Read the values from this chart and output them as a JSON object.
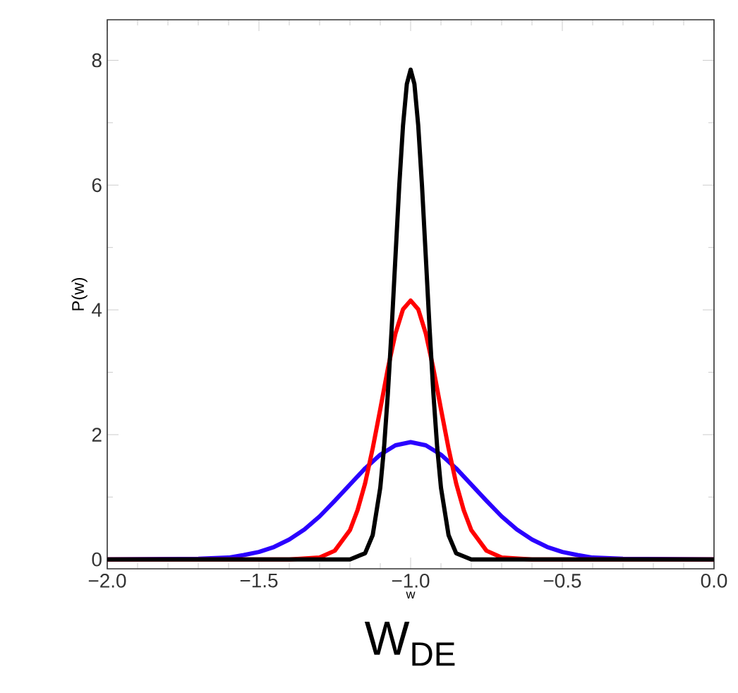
{
  "chart_data": {
    "type": "line",
    "xlabel": "w",
    "ylabel": "P(w)",
    "annotations": [
      "W$_{DE}$"
    ],
    "xlim": [
      -2.0,
      0.0
    ],
    "ylim": [
      -0.15,
      8.65
    ],
    "xticks": [
      {
        "value": -2.0,
        "label": "−2.0"
      },
      {
        "value": -1.5,
        "label": "−1.5"
      },
      {
        "value": -1.0,
        "label": "−1.0"
      },
      {
        "value": -0.5,
        "label": "−0.5"
      },
      {
        "value": 0.0,
        "label": "0.0"
      }
    ],
    "yticks": [
      0,
      2,
      4,
      6,
      8
    ],
    "grid": false,
    "series": [
      {
        "color": "#2a00ff",
        "x": [
          -2.0,
          -1.7,
          -1.6,
          -1.55,
          -1.5,
          -1.45,
          -1.4,
          -1.35,
          -1.3,
          -1.25,
          -1.2,
          -1.15,
          -1.1,
          -1.05,
          -1.0,
          -0.95,
          -0.9,
          -0.85,
          -0.8,
          -0.75,
          -0.7,
          -0.65,
          -0.6,
          -0.55,
          -0.5,
          -0.45,
          -0.4,
          -0.3,
          0.0
        ],
        "values": [
          0,
          0.01,
          0.03,
          0.07,
          0.12,
          0.2,
          0.32,
          0.48,
          0.69,
          0.94,
          1.2,
          1.46,
          1.68,
          1.83,
          1.88,
          1.83,
          1.68,
          1.46,
          1.2,
          0.94,
          0.69,
          0.48,
          0.32,
          0.2,
          0.12,
          0.07,
          0.03,
          0.01,
          0
        ]
      },
      {
        "color": "#ff0000",
        "x": [
          -2.0,
          -1.4,
          -1.3,
          -1.25,
          -1.2,
          -1.175,
          -1.15,
          -1.125,
          -1.1,
          -1.075,
          -1.05,
          -1.025,
          -1.0,
          -0.975,
          -0.95,
          -0.925,
          -0.9,
          -0.875,
          -0.85,
          -0.825,
          -0.8,
          -0.75,
          -0.7,
          -0.6,
          0.0
        ],
        "values": [
          0,
          0,
          0.03,
          0.14,
          0.47,
          0.79,
          1.22,
          1.78,
          2.41,
          3.06,
          3.62,
          4.01,
          4.15,
          4.01,
          3.62,
          3.06,
          2.41,
          1.78,
          1.22,
          0.79,
          0.47,
          0.14,
          0.03,
          0,
          0
        ]
      },
      {
        "color": "#000000",
        "x": [
          -2.0,
          -1.2,
          -1.15,
          -1.125,
          -1.1,
          -1.0875,
          -1.075,
          -1.0625,
          -1.05,
          -1.0375,
          -1.025,
          -1.0125,
          -1.0,
          -0.9875,
          -0.975,
          -0.9625,
          -0.95,
          -0.9375,
          -0.925,
          -0.9125,
          -0.9,
          -0.875,
          -0.85,
          -0.8,
          0.0
        ],
        "values": [
          0,
          0,
          0.1,
          0.39,
          1.15,
          1.8,
          2.66,
          3.7,
          4.85,
          5.99,
          6.96,
          7.62,
          7.85,
          7.62,
          6.96,
          5.99,
          4.85,
          3.7,
          2.66,
          1.8,
          1.15,
          0.39,
          0.1,
          0,
          0
        ]
      }
    ],
    "line_style": "solid"
  }
}
